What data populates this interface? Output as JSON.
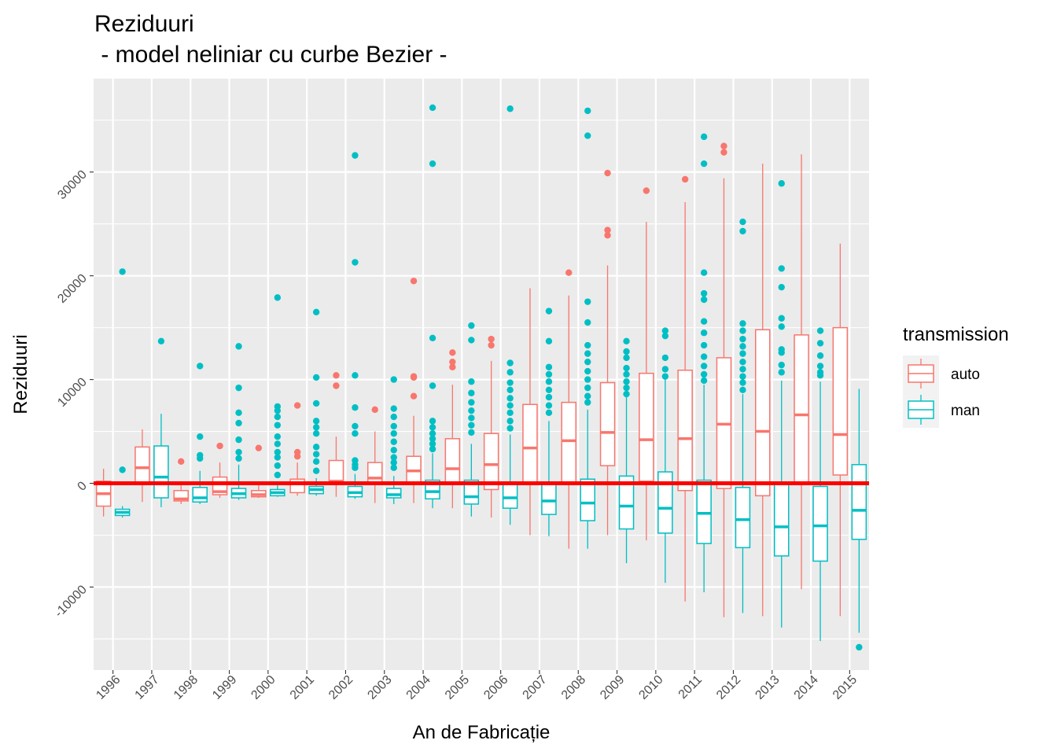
{
  "chart_data": {
    "type": "boxplot",
    "title": "Reziduuri",
    "subtitle": " - model neliniar cu curbe Bezier -",
    "xlabel": "An de Fabricație",
    "ylabel": "Reziduuri",
    "ylim": [
      -18000,
      39000
    ],
    "yticks": [
      -10000,
      0,
      10000,
      20000,
      30000
    ],
    "ytick_labels": [
      "-10000",
      "0",
      "10000",
      "20000",
      "30000"
    ],
    "grid": true,
    "reference_line": {
      "y": 0,
      "color": "#ff0000"
    },
    "legend": {
      "title": "transmission",
      "position": "right",
      "entries": [
        "auto",
        "man"
      ]
    },
    "colors": {
      "auto": "#F8766D",
      "man": "#00BFC4",
      "panel": "#EBEBEB",
      "grid": "#ffffff"
    },
    "categories": [
      "1996",
      "1997",
      "1998",
      "1999",
      "2000",
      "2001",
      "2002",
      "2003",
      "2004",
      "2005",
      "2006",
      "2007",
      "2008",
      "2009",
      "2010",
      "2011",
      "2012",
      "2013",
      "2014",
      "2015"
    ],
    "series": [
      {
        "name": "auto",
        "boxes": [
          {
            "low": -3200,
            "q1": -2200,
            "median": -1000,
            "q3": 200,
            "high": 1400,
            "outliers": []
          },
          {
            "low": -1800,
            "q1": 0,
            "median": 1500,
            "q3": 3500,
            "high": 5200,
            "outliers": []
          },
          {
            "low": -2000,
            "q1": -1700,
            "median": -1500,
            "q3": -700,
            "high": -200,
            "outliers": [
              2100
            ]
          },
          {
            "low": -1400,
            "q1": -1100,
            "median": -800,
            "q3": 600,
            "high": 2000,
            "outliers": [
              3600
            ]
          },
          {
            "low": -1400,
            "q1": -1300,
            "median": -1100,
            "q3": -700,
            "high": -200,
            "outliers": [
              3400
            ]
          },
          {
            "low": -1200,
            "q1": -900,
            "median": 0,
            "q3": 400,
            "high": 2000,
            "outliers": [
              7500,
              3000,
              2600
            ]
          },
          {
            "low": -1300,
            "q1": -100,
            "median": 200,
            "q3": 2200,
            "high": 4500,
            "outliers": [
              10400,
              9400
            ]
          },
          {
            "low": -1900,
            "q1": -100,
            "median": 500,
            "q3": 2000,
            "high": 5000,
            "outliers": [
              7100
            ]
          },
          {
            "low": -1900,
            "q1": 0,
            "median": 1200,
            "q3": 2600,
            "high": 6500,
            "outliers": [
              19500,
              10300,
              10200,
              8400
            ]
          },
          {
            "low": -2400,
            "q1": -100,
            "median": 1400,
            "q3": 4300,
            "high": 9500,
            "outliers": [
              12600,
              11700,
              11200
            ]
          },
          {
            "low": -3300,
            "q1": -600,
            "median": 1800,
            "q3": 4800,
            "high": 11800,
            "outliers": [
              13900,
              13300
            ]
          },
          {
            "low": -5000,
            "q1": 0,
            "median": 3400,
            "q3": 7600,
            "high": 18800,
            "outliers": []
          },
          {
            "low": -6300,
            "q1": 0,
            "median": 4100,
            "q3": 7800,
            "high": 18100,
            "outliers": [
              20300
            ]
          },
          {
            "low": -5000,
            "q1": 1700,
            "median": 4900,
            "q3": 9700,
            "high": 21000,
            "outliers": [
              29900,
              24400,
              23900
            ]
          },
          {
            "low": -5500,
            "q1": 200,
            "median": 4200,
            "q3": 10600,
            "high": 25200,
            "outliers": [
              28200
            ]
          },
          {
            "low": -11400,
            "q1": -700,
            "median": 4300,
            "q3": 10900,
            "high": 27100,
            "outliers": [
              29300
            ]
          },
          {
            "low": -12900,
            "q1": -500,
            "median": 5700,
            "q3": 12100,
            "high": 29400,
            "outliers": [
              32500,
              31900
            ]
          },
          {
            "low": -12800,
            "q1": -1200,
            "median": 5000,
            "q3": 14800,
            "high": 30800,
            "outliers": []
          },
          {
            "low": -10200,
            "q1": -100,
            "median": 6600,
            "q3": 14300,
            "high": 31700,
            "outliers": []
          },
          {
            "low": -12800,
            "q1": 800,
            "median": 4700,
            "q3": 15000,
            "high": 23100,
            "outliers": []
          }
        ]
      },
      {
        "name": "man",
        "boxes": [
          {
            "low": -3300,
            "q1": -3100,
            "median": -2800,
            "q3": -2500,
            "high": -2200,
            "outliers": [
              20400,
              1300
            ]
          },
          {
            "low": -2300,
            "q1": -1400,
            "median": 600,
            "q3": 3600,
            "high": 6700,
            "outliers": [
              13700
            ]
          },
          {
            "low": -2000,
            "q1": -1800,
            "median": -1400,
            "q3": -400,
            "high": 1200,
            "outliers": [
              11300,
              4500,
              2700,
              2400
            ]
          },
          {
            "low": -1600,
            "q1": -1400,
            "median": -1000,
            "q3": -500,
            "high": 1800,
            "outliers": [
              13200,
              9200,
              6800,
              5800,
              4200,
              3000,
              2400
            ]
          },
          {
            "low": -1300,
            "q1": -1200,
            "median": -900,
            "q3": -600,
            "high": 0,
            "outliers": [
              17900,
              7400,
              7000,
              6400,
              5600,
              4500,
              3800,
              3000,
              2500,
              1700,
              800
            ]
          },
          {
            "low": -1200,
            "q1": -1000,
            "median": -600,
            "q3": -300,
            "high": 500,
            "outliers": [
              16500,
              10200,
              7700,
              6000,
              5400,
              4800,
              3500,
              2800,
              2100,
              1200
            ]
          },
          {
            "low": -1500,
            "q1": -1300,
            "median": -900,
            "q3": -300,
            "high": 900,
            "outliers": [
              31600,
              21300,
              10400,
              7300,
              5500,
              4800,
              2200,
              1800,
              1500
            ]
          },
          {
            "low": -2000,
            "q1": -1400,
            "median": -1100,
            "q3": -500,
            "high": 700,
            "outliers": [
              10000,
              7200,
              6400,
              5500,
              4800,
              4000,
              3200,
              2500,
              2000,
              1500
            ]
          },
          {
            "low": -2400,
            "q1": -1500,
            "median": -800,
            "q3": 300,
            "high": 2900,
            "outliers": [
              36200,
              30800,
              14000,
              9400,
              6000,
              5400,
              4800,
              4300,
              3800,
              3300
            ]
          },
          {
            "low": -3200,
            "q1": -2000,
            "median": -1300,
            "q3": 300,
            "high": 3800,
            "outliers": [
              15200,
              13800,
              9800,
              8700,
              7800,
              7000,
              6300,
              5600,
              4900
            ]
          },
          {
            "low": -4000,
            "q1": -2400,
            "median": -1400,
            "q3": 100,
            "high": 4700,
            "outliers": [
              36100,
              11600,
              10700,
              9700,
              9000,
              8200,
              7500,
              6800,
              6000,
              5300
            ]
          },
          {
            "low": -5100,
            "q1": -3000,
            "median": -1700,
            "q3": 0,
            "high": 6000,
            "outliers": [
              16600,
              13700,
              11200,
              10500,
              9800,
              9000,
              8300,
              7500,
              6800
            ]
          },
          {
            "low": -6300,
            "q1": -3600,
            "median": -1900,
            "q3": 400,
            "high": 7100,
            "outliers": [
              35900,
              33500,
              17500,
              15500,
              13300,
              12500,
              11700,
              10800,
              10000,
              9200,
              8400,
              7800
            ]
          },
          {
            "low": -7700,
            "q1": -4400,
            "median": -2200,
            "q3": 700,
            "high": 8300,
            "outliers": [
              13700,
              12700,
              12100,
              11100,
              10500,
              9800,
              9200,
              8600
            ]
          },
          {
            "low": -9600,
            "q1": -4800,
            "median": -2400,
            "q3": 1100,
            "high": 10000,
            "outliers": [
              14700,
              14200,
              12100,
              11000,
              10300
            ]
          },
          {
            "low": -10500,
            "q1": -5800,
            "median": -2900,
            "q3": 300,
            "high": 9500,
            "outliers": [
              33400,
              30800,
              20300,
              18300,
              17700,
              15600,
              14500,
              13300,
              12200,
              11300,
              10500,
              9900
            ]
          },
          {
            "low": -12500,
            "q1": -6200,
            "median": -3500,
            "q3": -400,
            "high": 8600,
            "outliers": [
              25200,
              24300,
              15400,
              14700,
              13900,
              13200,
              12500,
              11700,
              11000,
              10300,
              9700,
              9000
            ]
          },
          {
            "low": -13900,
            "q1": -7000,
            "median": -4200,
            "q3": -100,
            "high": 9900,
            "outliers": [
              28900,
              20700,
              18900,
              15900,
              15100,
              12900,
              12600,
              11400,
              10700
            ]
          },
          {
            "low": -15200,
            "q1": -7500,
            "median": -4100,
            "q3": -300,
            "high": 9800,
            "outliers": [
              14700,
              13500,
              12300,
              11300,
              10700,
              10400
            ]
          },
          {
            "low": -14400,
            "q1": -5400,
            "median": -2600,
            "q3": 1800,
            "high": 9100,
            "outliers": [
              -15800
            ]
          }
        ]
      }
    ]
  }
}
